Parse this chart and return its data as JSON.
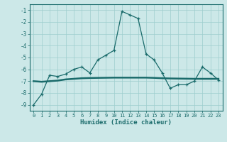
{
  "x": [
    0,
    1,
    2,
    3,
    4,
    5,
    6,
    7,
    8,
    9,
    10,
    11,
    12,
    13,
    14,
    15,
    16,
    17,
    18,
    19,
    20,
    21,
    22,
    23
  ],
  "y_line1": [
    -9.0,
    -8.1,
    -6.5,
    -6.6,
    -6.4,
    -6.0,
    -5.8,
    -6.3,
    -5.2,
    -4.8,
    -4.4,
    -1.1,
    -1.4,
    -1.7,
    -4.7,
    -5.2,
    -6.3,
    -7.6,
    -7.3,
    -7.3,
    -7.0,
    -5.8,
    -6.3,
    -6.9
  ],
  "y_line2": [
    -7.0,
    -7.05,
    -7.0,
    -6.95,
    -6.85,
    -6.8,
    -6.75,
    -6.73,
    -6.72,
    -6.71,
    -6.7,
    -6.7,
    -6.7,
    -6.7,
    -6.7,
    -6.72,
    -6.75,
    -6.77,
    -6.78,
    -6.79,
    -6.8,
    -6.8,
    -6.8,
    -6.8
  ],
  "line_color": "#1a6b6b",
  "bg_color": "#cce8e8",
  "grid_color": "#9ecece",
  "xlabel": "Humidex (Indice chaleur)",
  "ylim": [
    -9.5,
    -0.5
  ],
  "xlim": [
    -0.5,
    23.5
  ],
  "yticks": [
    -1,
    -2,
    -3,
    -4,
    -5,
    -6,
    -7,
    -8,
    -9
  ],
  "xticks": [
    0,
    1,
    2,
    3,
    4,
    5,
    6,
    7,
    8,
    9,
    10,
    11,
    12,
    13,
    14,
    15,
    16,
    17,
    18,
    19,
    20,
    21,
    22,
    23
  ]
}
